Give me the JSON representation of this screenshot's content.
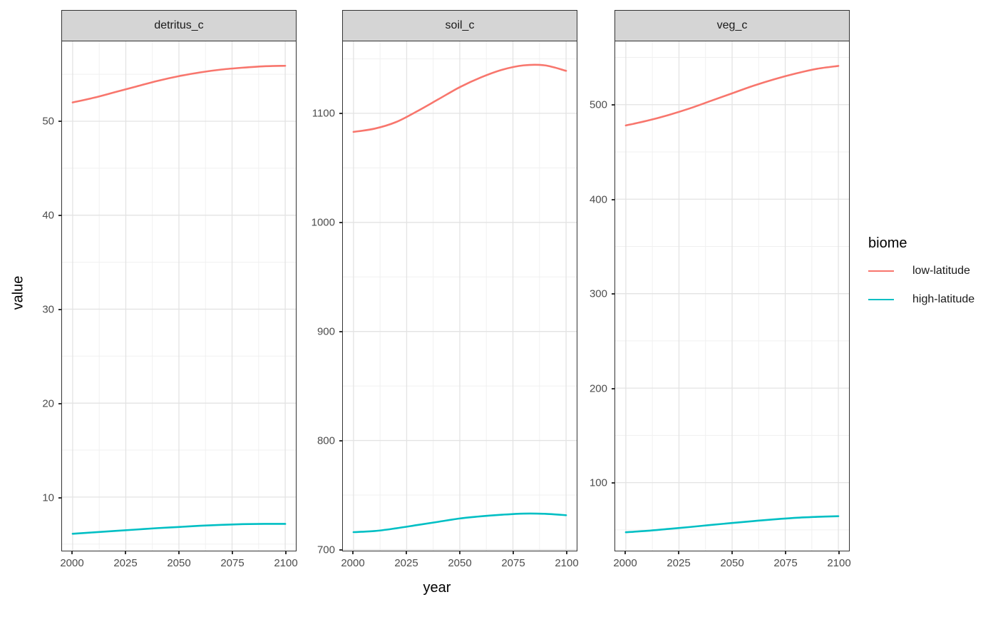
{
  "figure": {
    "ylabel": "value",
    "xlabel": "year",
    "legend": {
      "title": "biome",
      "entries": [
        {
          "label": "low-latitude",
          "color": "#F8766D"
        },
        {
          "label": "high-latitude",
          "color": "#00BFC4"
        }
      ]
    }
  },
  "style": {
    "strip_fill": "#d5d5d5",
    "panel_border": "#333333",
    "grid_major": "#e3e3e3",
    "grid_minor": "#f0f0f0",
    "tick_text": "#4d4d4d",
    "low_latitude_color": "#F8766D",
    "high_latitude_color": "#00BFC4"
  },
  "chart_data": {
    "type": "line",
    "faceted": true,
    "title": "",
    "xlabel": "year",
    "ylabel": "value",
    "legend_title": "biome",
    "legend_position": "right",
    "grid": true,
    "x": [
      2000,
      2010,
      2020,
      2030,
      2040,
      2050,
      2060,
      2070,
      2080,
      2090,
      2100
    ],
    "x_ticks": [
      2000,
      2025,
      2050,
      2075,
      2100
    ],
    "xlim": [
      1995,
      2105
    ],
    "facets": [
      {
        "title": "detritus_c",
        "ylim": [
          4.3,
          58.5
        ],
        "y_ticks": [
          10,
          20,
          30,
          40,
          50
        ],
        "axis_width": 42,
        "series": [
          {
            "name": "low-latitude",
            "color": "#F8766D",
            "values": [
              52.0,
              52.5,
              53.1,
              53.7,
              54.3,
              54.8,
              55.2,
              55.5,
              55.7,
              55.85,
              55.9
            ]
          },
          {
            "name": "high-latitude",
            "color": "#00BFC4",
            "values": [
              6.1,
              6.25,
              6.4,
              6.55,
              6.7,
              6.82,
              6.95,
              7.05,
              7.12,
              7.15,
              7.15
            ]
          }
        ]
      },
      {
        "title": "soil_c",
        "ylim": [
          699,
          1166
        ],
        "y_ticks": [
          700,
          800,
          900,
          1000,
          1100
        ],
        "axis_width": 64,
        "series": [
          {
            "name": "low-latitude",
            "color": "#F8766D",
            "values": [
              1083,
              1086,
              1092,
              1102,
              1113,
              1124,
              1133,
              1140,
              1144,
              1144,
              1139
            ]
          },
          {
            "name": "high-latitude",
            "color": "#00BFC4",
            "values": [
              716,
              717,
              719.5,
              722.5,
              725.5,
              728.5,
              730.5,
              732,
              733,
              732.8,
              731.5
            ]
          }
        ]
      },
      {
        "title": "veg_c",
        "ylim": [
          28,
          567
        ],
        "y_ticks": [
          100,
          200,
          300,
          400,
          500
        ],
        "axis_width": 52,
        "series": [
          {
            "name": "low-latitude",
            "color": "#F8766D",
            "values": [
              478,
              483,
              489,
              496,
              504,
              512,
              520,
              527,
              533,
              538,
              541
            ]
          },
          {
            "name": "high-latitude",
            "color": "#00BFC4",
            "values": [
              47.5,
              49,
              51,
              53,
              55.2,
              57.3,
              59.3,
              61.2,
              62.8,
              63.8,
              64.5
            ]
          }
        ]
      }
    ]
  }
}
